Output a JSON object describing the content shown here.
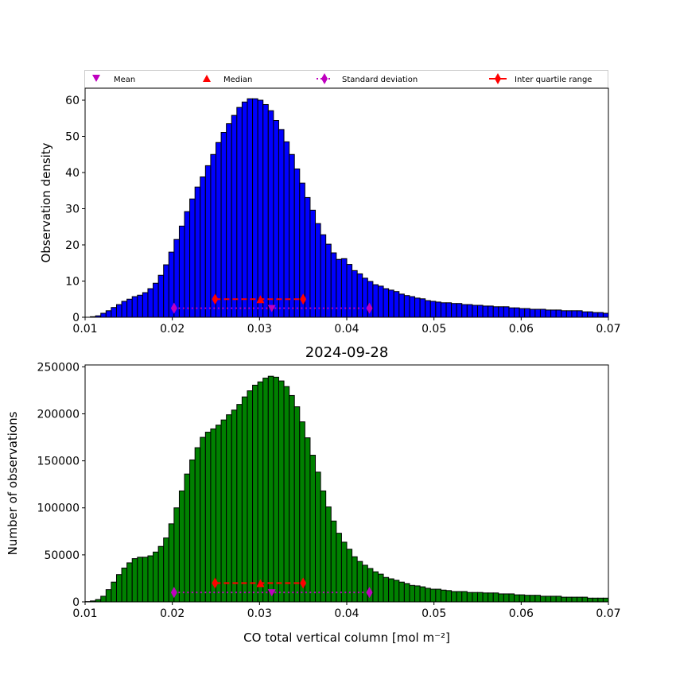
{
  "legend": {
    "placement": "top",
    "items": [
      {
        "label": "Mean",
        "marker": "triangle-down",
        "color": "#bf00bf"
      },
      {
        "label": "Median",
        "marker": "triangle-up",
        "color": "#ff0000"
      },
      {
        "label": "Standard deviation",
        "marker": "diamond-dotted-line",
        "color": "#bf00bf"
      },
      {
        "label": "Inter quartile range",
        "marker": "diamond-solid-line",
        "color": "#ff0000"
      }
    ]
  },
  "chart_data": [
    {
      "type": "bar",
      "title": "",
      "xlabel": "",
      "ylabel": "Observation density",
      "xlim": [
        0.01,
        0.07
      ],
      "ylim": [
        0,
        63.3
      ],
      "xticks": [
        "0.01",
        "0.02",
        "0.03",
        "0.04",
        "0.05",
        "0.06",
        "0.07"
      ],
      "yticks": [
        "0",
        "10",
        "20",
        "30",
        "40",
        "50",
        "60"
      ],
      "bar_color": "#0000ff",
      "bin_start": 0.01,
      "bin_width": 0.0006,
      "values": [
        0,
        0.15,
        0.4,
        1.1,
        1.8,
        2.7,
        3.5,
        4.4,
        5.0,
        5.7,
        6.1,
        6.8,
        7.9,
        9.4,
        11.6,
        14.5,
        18.0,
        21.5,
        25.2,
        29.2,
        32.7,
        36.0,
        38.8,
        41.9,
        45.0,
        48.3,
        51.1,
        53.5,
        55.8,
        58.0,
        59.5,
        60.4,
        60.4,
        60.0,
        58.8,
        57.1,
        54.4,
        51.9,
        48.5,
        45.0,
        41.0,
        37.1,
        33.1,
        29.6,
        25.9,
        22.8,
        20.2,
        17.8,
        16.0,
        16.2,
        14.6,
        12.9,
        12.0,
        10.8,
        9.9,
        9.0,
        8.6,
        7.9,
        7.5,
        7.1,
        6.4,
        6.0,
        5.7,
        5.3,
        5.1,
        4.6,
        4.4,
        4.2,
        4.0,
        4.0,
        3.8,
        3.8,
        3.5,
        3.5,
        3.3,
        3.3,
        3.1,
        3.1,
        2.9,
        2.9,
        2.9,
        2.6,
        2.6,
        2.4,
        2.4,
        2.2,
        2.2,
        2.2,
        2.0,
        2.0,
        2.0,
        1.8,
        1.8,
        1.8,
        1.8,
        1.5,
        1.5,
        1.3,
        1.3,
        1.1
      ],
      "stats": {
        "mean": 0.0314,
        "median": 0.0301,
        "iqr": [
          0.0249,
          0.035
        ],
        "std_range": [
          0.0202,
          0.0426
        ],
        "iqr_y": 5,
        "std_y": 2.5
      }
    },
    {
      "type": "bar",
      "title": "2024-09-28",
      "xlabel": "CO total vertical column [mol m⁻²]",
      "ylabel": "Number of observations",
      "xlim": [
        0.01,
        0.07
      ],
      "ylim": [
        0,
        252000
      ],
      "xticks": [
        "0.01",
        "0.02",
        "0.03",
        "0.04",
        "0.05",
        "0.06",
        "0.07"
      ],
      "yticks": [
        "0",
        "50000",
        "100000",
        "150000",
        "200000",
        "250000"
      ],
      "bar_color": "#008000",
      "bin_start": 0.01,
      "bin_width": 0.0006,
      "values": [
        300,
        1000,
        2500,
        6000,
        13000,
        21000,
        29000,
        36000,
        41500,
        46000,
        47500,
        47500,
        49000,
        53000,
        59000,
        68000,
        83000,
        100000,
        118000,
        136000,
        151000,
        164000,
        175000,
        180500,
        184000,
        188000,
        193500,
        199000,
        204000,
        210000,
        218000,
        224500,
        230500,
        234000,
        238000,
        240000,
        239000,
        235000,
        229000,
        219500,
        207500,
        191500,
        174500,
        156000,
        138000,
        118000,
        101000,
        86000,
        73000,
        63500,
        56000,
        48000,
        43000,
        39000,
        35500,
        32000,
        29500,
        26000,
        24500,
        23000,
        21000,
        19500,
        17500,
        17000,
        16000,
        14500,
        13500,
        13500,
        12500,
        12000,
        11000,
        11000,
        11000,
        10000,
        10000,
        10000,
        9500,
        9500,
        9500,
        8500,
        8500,
        8500,
        7500,
        7500,
        7000,
        7000,
        7000,
        6000,
        6000,
        6000,
        6000,
        5000,
        5000,
        5000,
        5000,
        5000,
        4000,
        4000,
        4000,
        4000
      ],
      "stats": {
        "mean": 0.0314,
        "median": 0.0301,
        "iqr": [
          0.0249,
          0.035
        ],
        "std_range": [
          0.0202,
          0.0426
        ],
        "iqr_y": 20000,
        "std_y": 10000
      }
    }
  ]
}
